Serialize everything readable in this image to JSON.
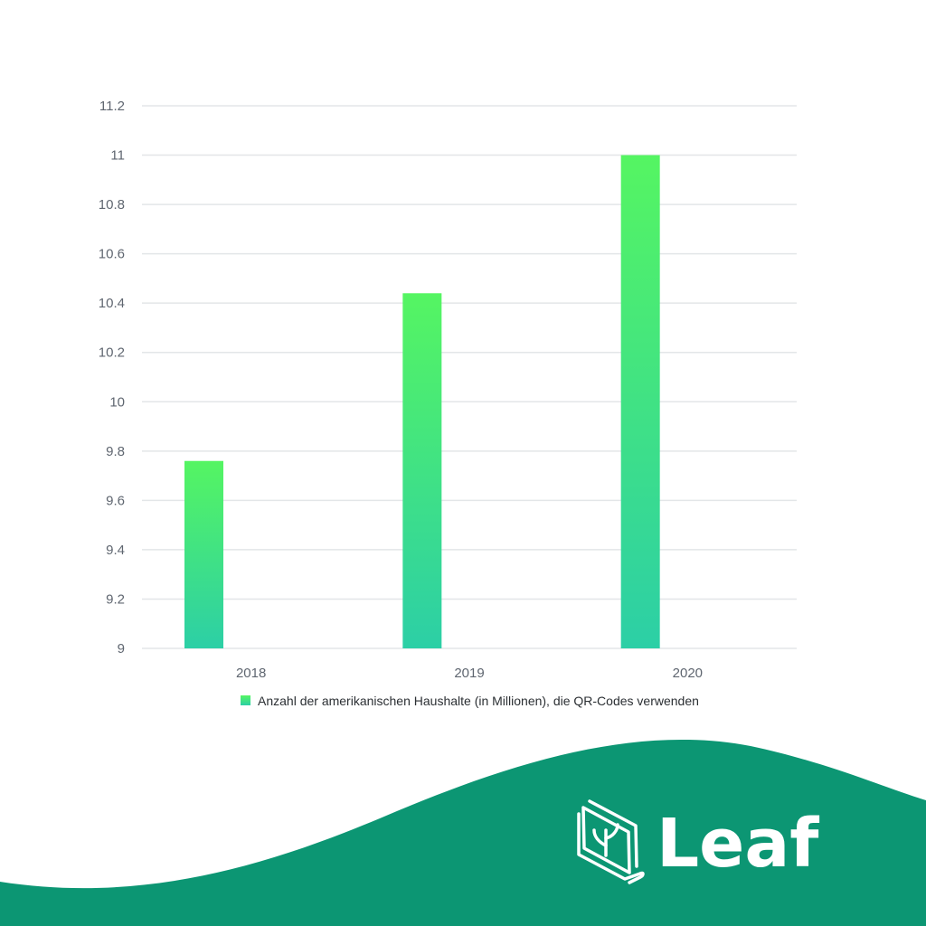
{
  "chart_data": {
    "type": "bar",
    "categories": [
      "2018",
      "2019",
      "2020"
    ],
    "series": [
      {
        "name": "Anzahl der amerikanischen Haushalte (in Millionen), die QR-Codes verwenden",
        "values": [
          9.76,
          10.44,
          11.0
        ]
      }
    ],
    "ylim": [
      9,
      11.2
    ],
    "yticks": [
      "9",
      "9.2",
      "9.4",
      "9.6",
      "9.8",
      "10",
      "10.2",
      "10.4",
      "10.6",
      "10.8",
      "11",
      "11.2"
    ],
    "grid": true,
    "legend_position": "bottom",
    "colors": {
      "bar_top": "#55f562",
      "bar_bottom": "#2ccfa6",
      "grid": "#e3e6e8"
    }
  },
  "brand": {
    "name": "Leaf",
    "logo_icon": "leaf-book-icon",
    "colors": {
      "wave": "#0c9673",
      "text": "#ffffff"
    }
  }
}
